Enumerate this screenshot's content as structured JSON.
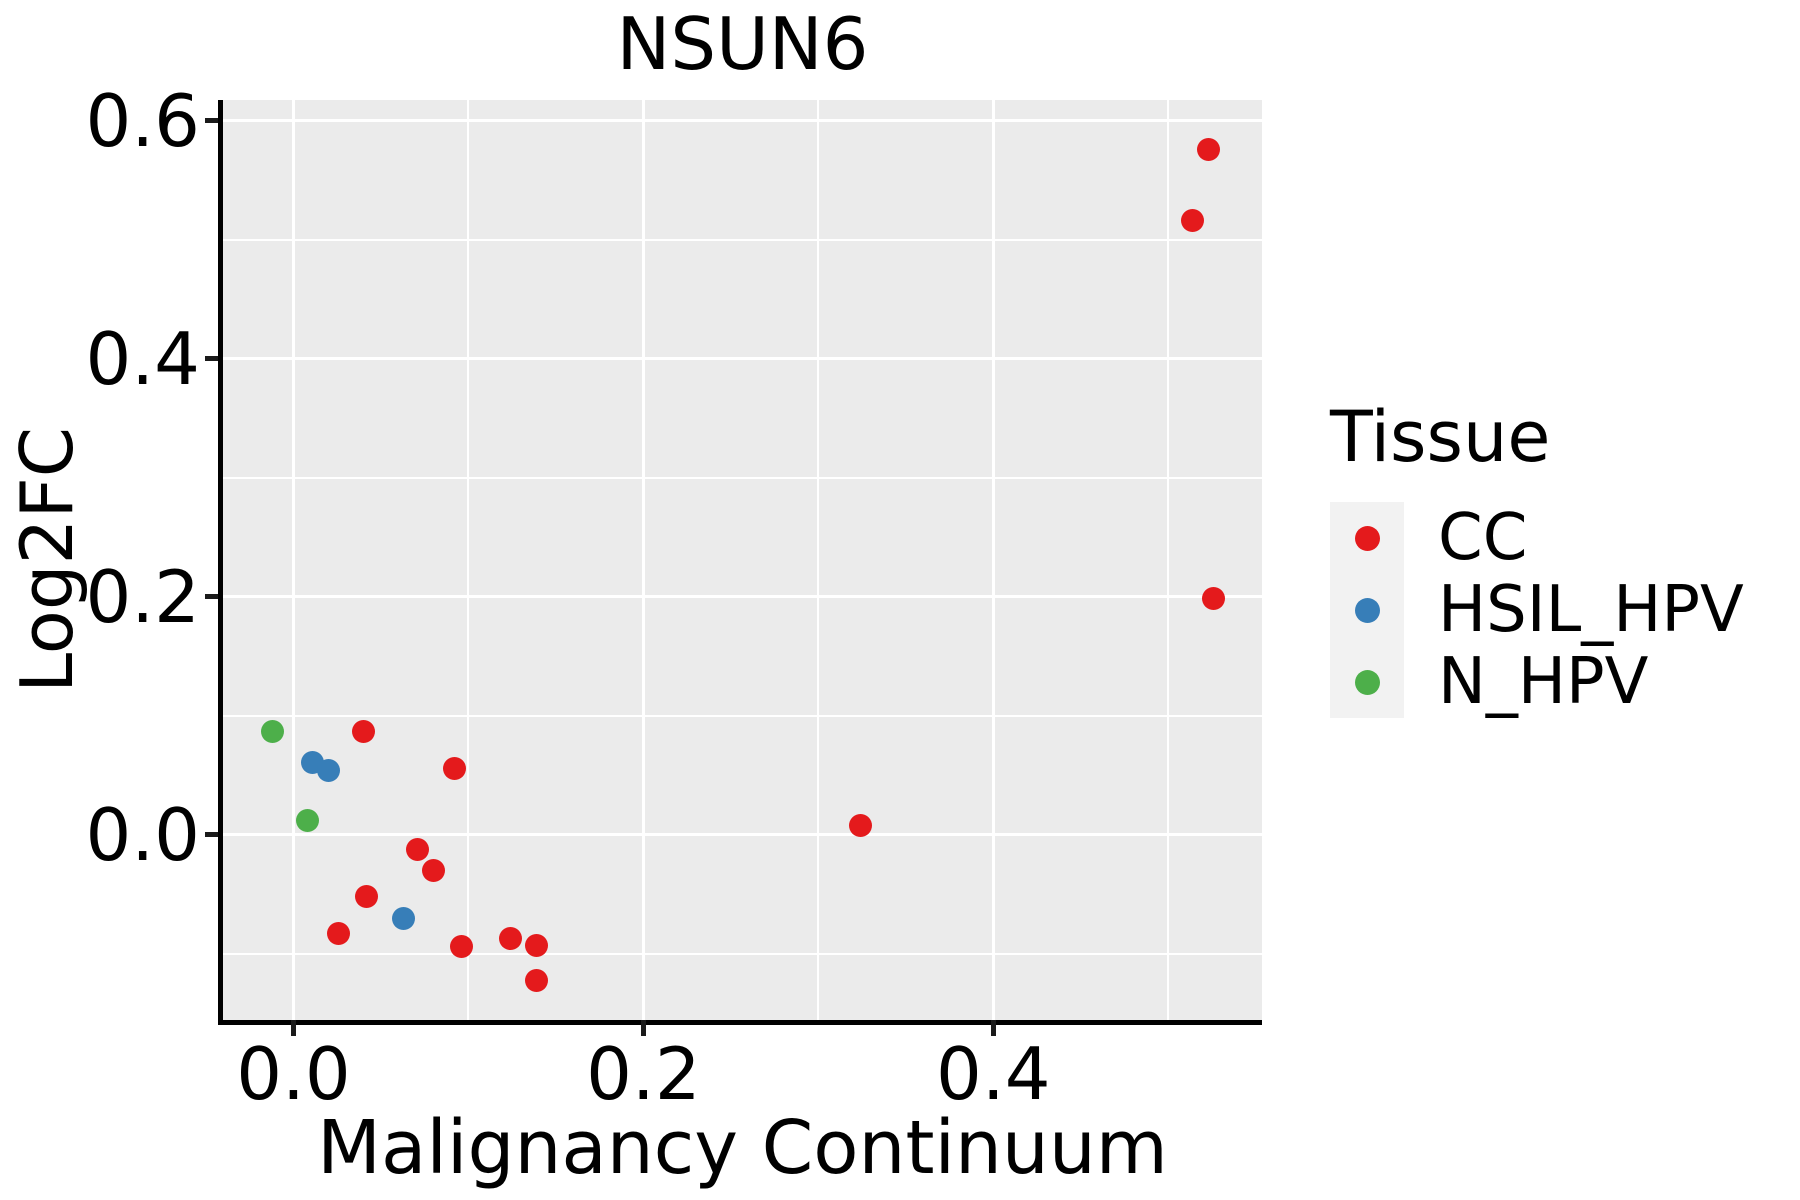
{
  "title": "NSUN6",
  "axes": {
    "x": {
      "label": "Malignancy Continuum"
    },
    "y": {
      "label": "Log2FC"
    }
  },
  "legend": {
    "title": "Tissue",
    "entries": [
      {
        "label": "CC",
        "color": "#E41A1C"
      },
      {
        "label": "HSIL_HPV",
        "color": "#377EB8"
      },
      {
        "label": "N_HPV",
        "color": "#4DAF4A"
      }
    ]
  },
  "colors": {
    "panel_background": "#EBEBEB",
    "grid": "#FFFFFF",
    "axis": "#000000",
    "legend_key_background": "#F2F2F2"
  },
  "chart_data": {
    "type": "scatter",
    "title": "NSUN6",
    "xlabel": "Malignancy Continuum",
    "ylabel": "Log2FC",
    "xlim": [
      -0.0403,
      0.5536
    ],
    "ylim": [
      -0.1555,
      0.6176
    ],
    "x_major_ticks": [
      {
        "v": 0.0,
        "label": "0.0"
      },
      {
        "v": 0.2,
        "label": "0.2"
      },
      {
        "v": 0.4,
        "label": "0.4"
      }
    ],
    "x_minor_ticks": [
      0.1,
      0.3,
      0.5
    ],
    "y_major_ticks": [
      {
        "v": 0.0,
        "label": "0.0"
      },
      {
        "v": 0.2,
        "label": "0.2"
      },
      {
        "v": 0.4,
        "label": "0.4"
      },
      {
        "v": 0.6,
        "label": "0.6"
      }
    ],
    "y_minor_ticks": [
      -0.1,
      0.1,
      0.3,
      0.5
    ],
    "grid": true,
    "legend_position": "right",
    "series": [
      {
        "name": "CC",
        "color": "#E41A1C",
        "points": [
          [
            0.04,
            0.087
          ],
          [
            0.092,
            0.056
          ],
          [
            0.071,
            -0.012
          ],
          [
            0.08,
            -0.03
          ],
          [
            0.042,
            -0.052
          ],
          [
            0.026,
            -0.083
          ],
          [
            0.096,
            -0.094
          ],
          [
            0.124,
            -0.087
          ],
          [
            0.139,
            -0.093
          ],
          [
            0.139,
            -0.122
          ],
          [
            0.324,
            0.008
          ],
          [
            0.523,
            0.576
          ],
          [
            0.514,
            0.516
          ],
          [
            0.526,
            0.199
          ]
        ]
      },
      {
        "name": "HSIL_HPV",
        "color": "#377EB8",
        "points": [
          [
            0.011,
            0.061
          ],
          [
            0.02,
            0.054
          ],
          [
            0.063,
            -0.07
          ]
        ]
      },
      {
        "name": "N_HPV",
        "color": "#4DAF4A",
        "points": [
          [
            -0.012,
            0.087
          ],
          [
            0.008,
            0.012
          ]
        ]
      }
    ]
  }
}
